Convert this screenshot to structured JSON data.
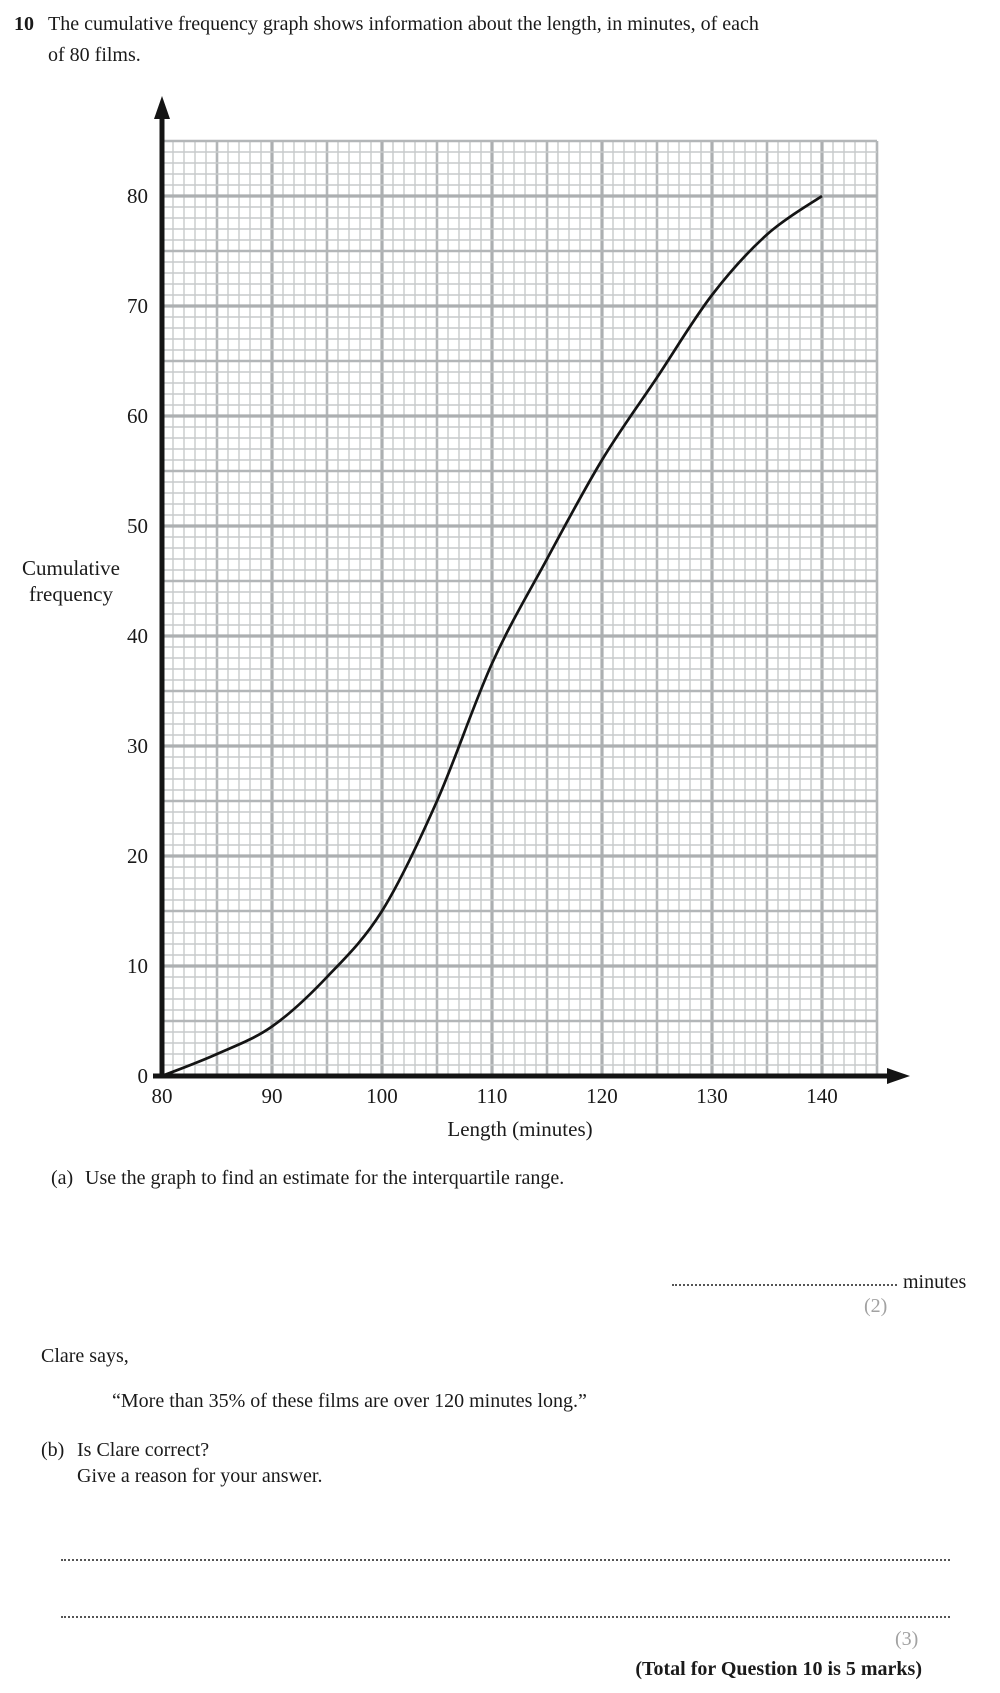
{
  "question": {
    "number": "10",
    "line1": "The cumulative frequency graph shows information about the length, in minutes, of each",
    "line2": "of 80 films."
  },
  "chart_data": {
    "type": "line",
    "title": "",
    "xlabel": "Length (minutes)",
    "ylabel_line1": "Cumulative",
    "ylabel_line2": "frequency",
    "x_ticks": [
      80,
      90,
      100,
      110,
      120,
      130,
      140
    ],
    "y_ticks": [
      0,
      10,
      20,
      30,
      40,
      50,
      60,
      70,
      80
    ],
    "xlim": [
      80,
      145
    ],
    "ylim": [
      0,
      85
    ],
    "grid": {
      "minor_step": 1,
      "medium_step": 5,
      "major_step": 10,
      "on": true
    },
    "legend": "none",
    "series": [
      {
        "name": "cumulative-frequency-ogive",
        "points": [
          [
            80,
            0
          ],
          [
            85,
            2
          ],
          [
            90,
            4.5
          ],
          [
            95,
            9
          ],
          [
            100,
            15
          ],
          [
            105,
            25
          ],
          [
            110,
            37.5
          ],
          [
            115,
            47
          ],
          [
            120,
            56
          ],
          [
            125,
            63.5
          ],
          [
            130,
            71
          ],
          [
            135,
            76.5
          ],
          [
            140,
            80
          ]
        ]
      }
    ]
  },
  "part_a": {
    "label": "(a)",
    "text": "Use the graph to find an estimate for the interquartile range.",
    "answer_unit": "minutes",
    "marks": "(2)"
  },
  "clare": {
    "intro": "Clare says,",
    "quote": "“More than 35% of these films are over 120 minutes long.”"
  },
  "part_b": {
    "label": "(b)",
    "line1": "Is Clare correct?",
    "line2": "Give a reason for your answer.",
    "marks": "(3)"
  },
  "footer": {
    "total": "(Total for Question 10 is 5 marks)"
  },
  "colors": {
    "curve": "#141414",
    "grid_minor": "#c7cacb",
    "grid_major": "#acafb1",
    "marks_gray": "#a2a2a2"
  }
}
